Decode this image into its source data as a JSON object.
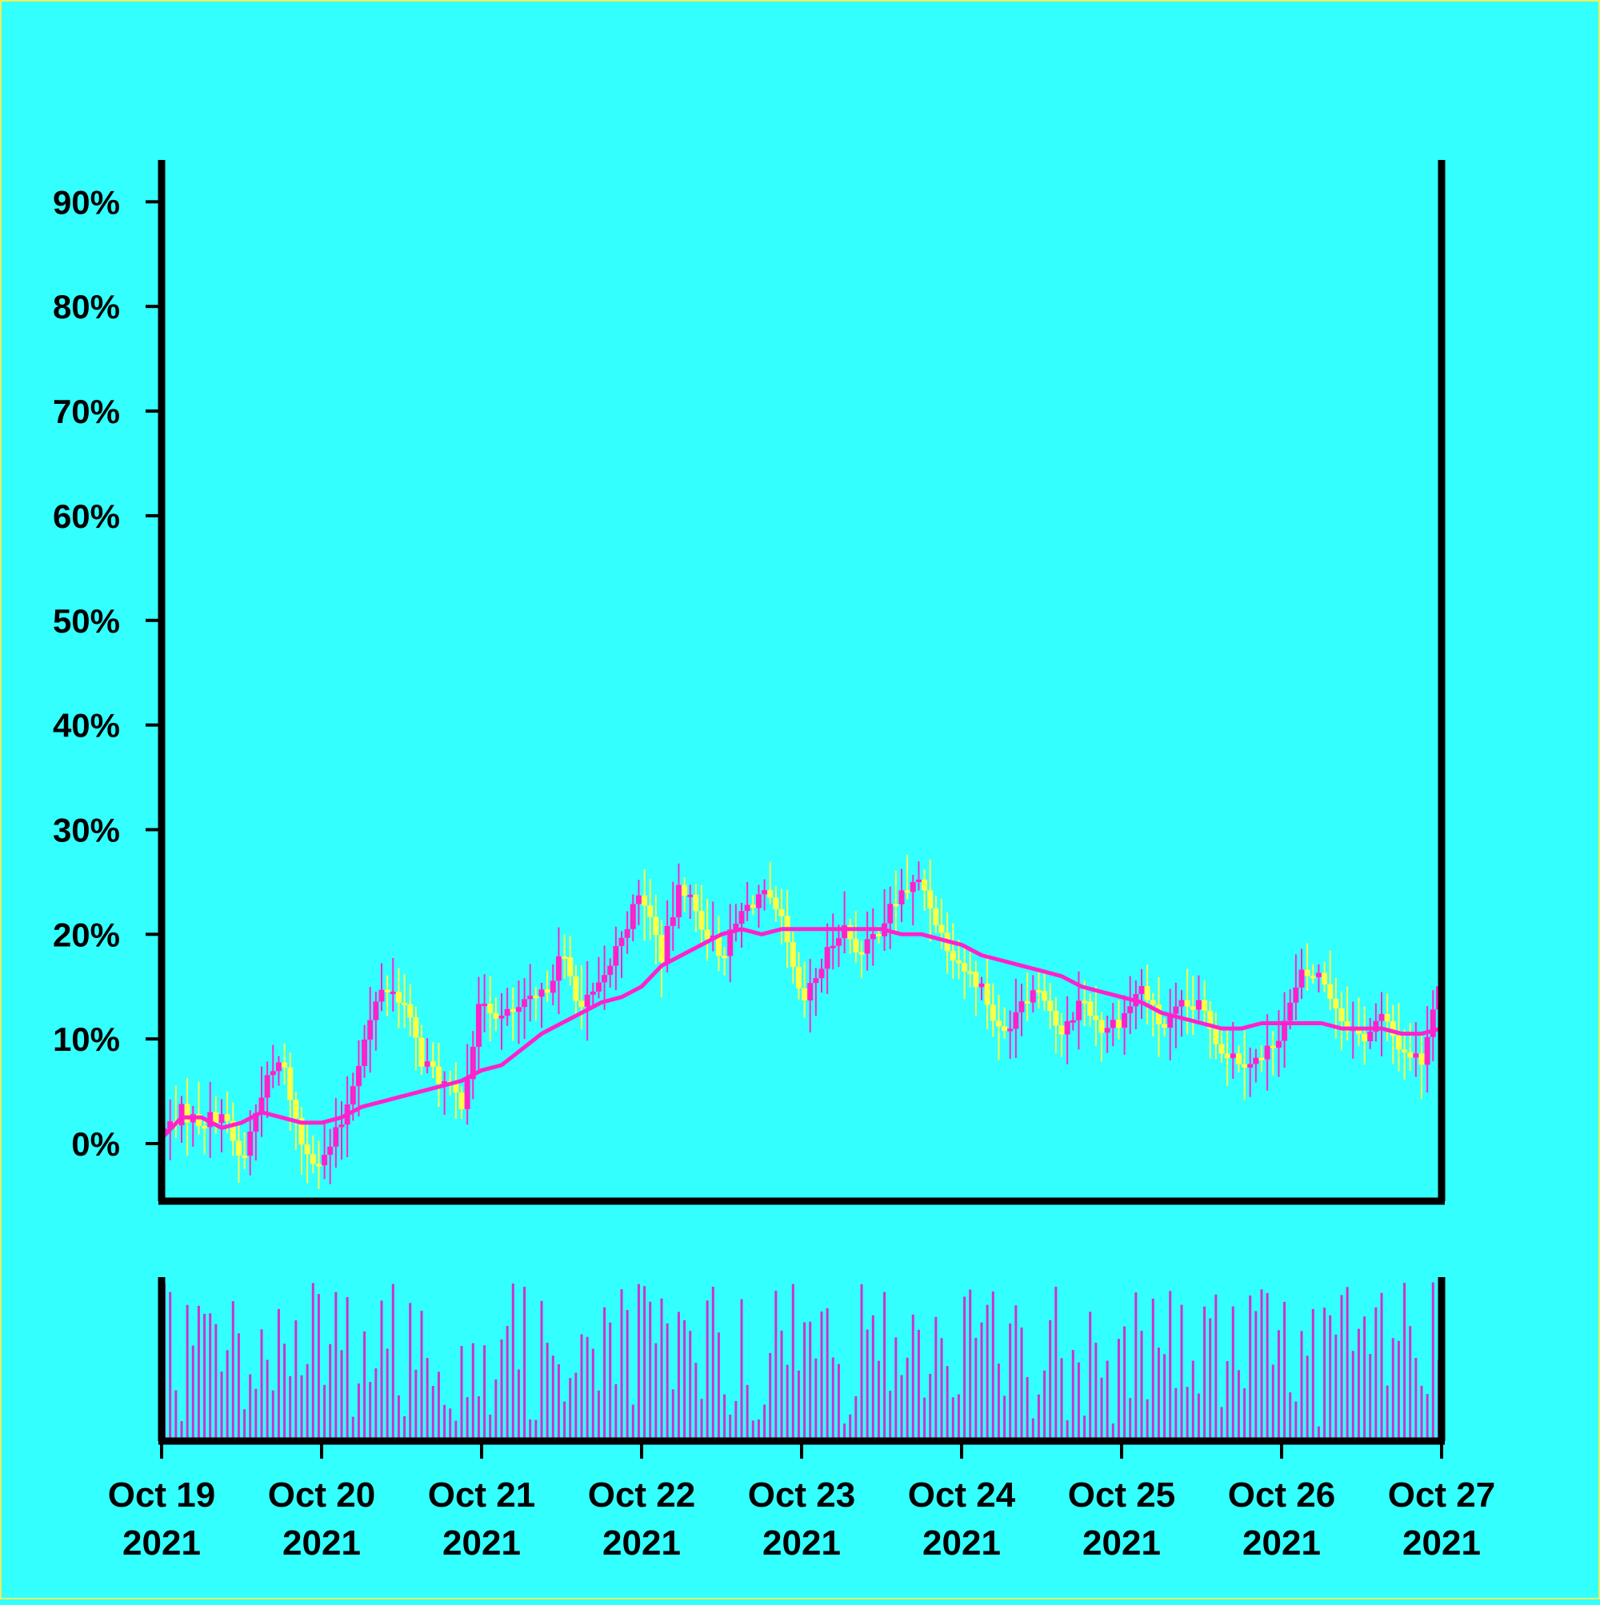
{
  "chart_data": {
    "type": "candlestick",
    "title": "",
    "xlabel": "",
    "ylabel": "",
    "ylim": [
      -5.5,
      94
    ],
    "y_ticks": [
      0,
      10,
      20,
      30,
      40,
      50,
      60,
      70,
      80,
      90
    ],
    "y_tick_labels": [
      "0%",
      "10%",
      "20%",
      "30%",
      "40%",
      "50%",
      "60%",
      "70%",
      "80%",
      "90%"
    ],
    "x_range": [
      "2021-10-19",
      "2021-10-27"
    ],
    "x_ticks": [
      "2021-10-19",
      "2021-10-20",
      "2021-10-21",
      "2021-10-22",
      "2021-10-23",
      "2021-10-24",
      "2021-10-25",
      "2021-10-26",
      "2021-10-27"
    ],
    "x_tick_labels": [
      {
        "month_day": "Oct 19",
        "year": "2021"
      },
      {
        "month_day": "Oct 20",
        "year": "2021"
      },
      {
        "month_day": "Oct 21",
        "year": "2021"
      },
      {
        "month_day": "Oct 22",
        "year": "2021"
      },
      {
        "month_day": "Oct 23",
        "year": "2021"
      },
      {
        "month_day": "Oct 24",
        "year": "2021"
      },
      {
        "month_day": "Oct 25",
        "year": "2021"
      },
      {
        "month_day": "Oct 26",
        "year": "2021"
      },
      {
        "month_day": "Oct 27",
        "year": "2021"
      }
    ],
    "grid": false,
    "legend": "none",
    "colors": {
      "background": "#33ffff",
      "up": "#ff22cc",
      "down": "#ffff44",
      "moving_average": "#ff22cc",
      "volume": "#cc33cc",
      "axes": "#000000",
      "border": "#e8f060"
    },
    "close_path": [
      [
        "2021-10-19T00:00",
        1
      ],
      [
        "2021-10-19T03:00",
        3
      ],
      [
        "2021-10-19T06:00",
        2
      ],
      [
        "2021-10-19T09:00",
        3
      ],
      [
        "2021-10-19T12:00",
        -2
      ],
      [
        "2021-10-19T15:00",
        5
      ],
      [
        "2021-10-19T18:00",
        8
      ],
      [
        "2021-10-19T21:00",
        0
      ],
      [
        "2021-10-20T00:00",
        -2
      ],
      [
        "2021-10-20T03:00",
        2
      ],
      [
        "2021-10-20T06:00",
        9
      ],
      [
        "2021-10-20T09:00",
        15
      ],
      [
        "2021-10-20T12:00",
        14
      ],
      [
        "2021-10-20T15:00",
        8
      ],
      [
        "2021-10-20T18:00",
        6
      ],
      [
        "2021-10-20T21:00",
        4
      ],
      [
        "2021-10-21T00:00",
        14
      ],
      [
        "2021-10-21T03:00",
        12
      ],
      [
        "2021-10-21T06:00",
        13
      ],
      [
        "2021-10-21T09:00",
        14
      ],
      [
        "2021-10-21T12:00",
        18
      ],
      [
        "2021-10-21T15:00",
        13
      ],
      [
        "2021-10-21T18:00",
        15
      ],
      [
        "2021-10-21T21:00",
        20
      ],
      [
        "2021-10-22T00:00",
        24
      ],
      [
        "2021-10-22T03:00",
        18
      ],
      [
        "2021-10-22T06:00",
        25
      ],
      [
        "2021-10-22T09:00",
        21
      ],
      [
        "2021-10-22T12:00",
        18
      ],
      [
        "2021-10-22T15:00",
        22
      ],
      [
        "2021-10-22T18:00",
        24
      ],
      [
        "2021-10-22T21:00",
        21
      ],
      [
        "2021-10-23T00:00",
        13
      ],
      [
        "2021-10-23T03:00",
        17
      ],
      [
        "2021-10-23T06:00",
        21
      ],
      [
        "2021-10-23T09:00",
        18
      ],
      [
        "2021-10-23T12:00",
        21
      ],
      [
        "2021-10-23T15:00",
        24
      ],
      [
        "2021-10-23T18:00",
        25
      ],
      [
        "2021-10-23T21:00",
        20
      ],
      [
        "2021-10-24T00:00",
        17
      ],
      [
        "2021-10-24T03:00",
        15
      ],
      [
        "2021-10-24T06:00",
        10
      ],
      [
        "2021-10-24T09:00",
        14
      ],
      [
        "2021-10-24T12:00",
        15
      ],
      [
        "2021-10-24T15:00",
        10
      ],
      [
        "2021-10-24T18:00",
        14
      ],
      [
        "2021-10-24T21:00",
        11
      ],
      [
        "2021-10-25T00:00",
        12
      ],
      [
        "2021-10-25T03:00",
        15
      ],
      [
        "2021-10-25T06:00",
        11
      ],
      [
        "2021-10-25T09:00",
        13
      ],
      [
        "2021-10-25T12:00",
        13
      ],
      [
        "2021-10-25T15:00",
        9
      ],
      [
        "2021-10-25T18:00",
        8
      ],
      [
        "2021-10-25T21:00",
        8
      ],
      [
        "2021-10-26T00:00",
        11
      ],
      [
        "2021-10-26T03:00",
        16
      ],
      [
        "2021-10-26T06:00",
        16
      ],
      [
        "2021-10-26T09:00",
        12
      ],
      [
        "2021-10-26T12:00",
        10
      ],
      [
        "2021-10-26T15:00",
        12
      ],
      [
        "2021-10-26T18:00",
        9
      ],
      [
        "2021-10-26T21:00",
        8
      ],
      [
        "2021-10-27T00:00",
        17
      ]
    ],
    "moving_average": [
      [
        "2021-10-19T00:00",
        0.5
      ],
      [
        "2021-10-19T03:00",
        2.5
      ],
      [
        "2021-10-19T06:00",
        2.5
      ],
      [
        "2021-10-19T09:00",
        1.5
      ],
      [
        "2021-10-19T12:00",
        2
      ],
      [
        "2021-10-19T15:00",
        3
      ],
      [
        "2021-10-19T18:00",
        2.5
      ],
      [
        "2021-10-19T21:00",
        2
      ],
      [
        "2021-10-20T00:00",
        2
      ],
      [
        "2021-10-20T03:00",
        2.5
      ],
      [
        "2021-10-20T06:00",
        3.5
      ],
      [
        "2021-10-20T09:00",
        4
      ],
      [
        "2021-10-20T12:00",
        4.5
      ],
      [
        "2021-10-20T15:00",
        5
      ],
      [
        "2021-10-20T18:00",
        5.5
      ],
      [
        "2021-10-20T21:00",
        6
      ],
      [
        "2021-10-21T00:00",
        7
      ],
      [
        "2021-10-21T03:00",
        7.5
      ],
      [
        "2021-10-21T06:00",
        9
      ],
      [
        "2021-10-21T09:00",
        10.5
      ],
      [
        "2021-10-21T12:00",
        11.5
      ],
      [
        "2021-10-21T15:00",
        12.5
      ],
      [
        "2021-10-21T18:00",
        13.5
      ],
      [
        "2021-10-21T21:00",
        14
      ],
      [
        "2021-10-22T00:00",
        15
      ],
      [
        "2021-10-22T03:00",
        17
      ],
      [
        "2021-10-22T06:00",
        18
      ],
      [
        "2021-10-22T09:00",
        19
      ],
      [
        "2021-10-22T12:00",
        20
      ],
      [
        "2021-10-22T15:00",
        20.5
      ],
      [
        "2021-10-22T18:00",
        20
      ],
      [
        "2021-10-22T21:00",
        20.5
      ],
      [
        "2021-10-23T00:00",
        20.5
      ],
      [
        "2021-10-23T03:00",
        20.5
      ],
      [
        "2021-10-23T06:00",
        20.5
      ],
      [
        "2021-10-23T09:00",
        20.5
      ],
      [
        "2021-10-23T12:00",
        20.5
      ],
      [
        "2021-10-23T15:00",
        20
      ],
      [
        "2021-10-23T18:00",
        20
      ],
      [
        "2021-10-23T21:00",
        19.5
      ],
      [
        "2021-10-24T00:00",
        19
      ],
      [
        "2021-10-24T03:00",
        18
      ],
      [
        "2021-10-24T06:00",
        17.5
      ],
      [
        "2021-10-24T09:00",
        17
      ],
      [
        "2021-10-24T12:00",
        16.5
      ],
      [
        "2021-10-24T15:00",
        16
      ],
      [
        "2021-10-24T18:00",
        15
      ],
      [
        "2021-10-24T21:00",
        14.5
      ],
      [
        "2021-10-25T00:00",
        14
      ],
      [
        "2021-10-25T03:00",
        13.5
      ],
      [
        "2021-10-25T06:00",
        12.5
      ],
      [
        "2021-10-25T09:00",
        12
      ],
      [
        "2021-10-25T12:00",
        11.5
      ],
      [
        "2021-10-25T15:00",
        11
      ],
      [
        "2021-10-25T18:00",
        11
      ],
      [
        "2021-10-25T21:00",
        11.5
      ],
      [
        "2021-10-26T00:00",
        11.5
      ],
      [
        "2021-10-26T03:00",
        11.5
      ],
      [
        "2021-10-26T06:00",
        11.5
      ],
      [
        "2021-10-26T09:00",
        11
      ],
      [
        "2021-10-26T12:00",
        11
      ],
      [
        "2021-10-26T15:00",
        11
      ],
      [
        "2021-10-26T18:00",
        10.5
      ],
      [
        "2021-10-26T21:00",
        10.5
      ],
      [
        "2021-10-27T00:00",
        11
      ]
    ],
    "volume_series": {
      "candles_per_day": 28,
      "description": "pseudo-random heights by candle index",
      "min": 0.05,
      "max": 1.0
    }
  }
}
